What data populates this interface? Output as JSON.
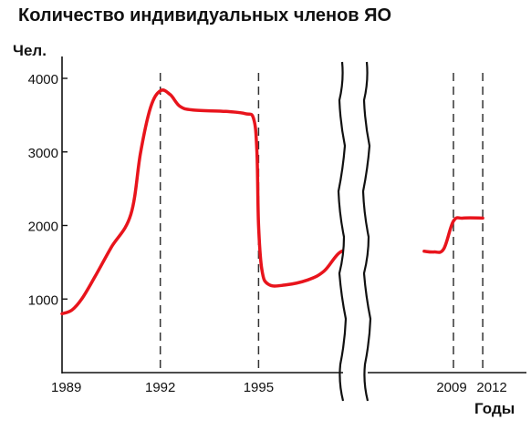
{
  "chart_data": {
    "type": "line",
    "title": "Количество индивидуальных членов ЯО",
    "ylabel": "Чел.",
    "xlabel": "Годы",
    "x_ticks": [
      "1989",
      "1992",
      "1995",
      "2009",
      "2012"
    ],
    "y_ticks": [
      "1000",
      "2000",
      "3000",
      "4000"
    ],
    "ylim": [
      0,
      4000
    ],
    "axis_break": "between 1998 and 2006",
    "vertical_markers": [
      "1992",
      "1995",
      "2009",
      "2012"
    ],
    "series": [
      {
        "color": "#e8141c",
        "points": [
          {
            "x": 1989.0,
            "y": 800
          },
          {
            "x": 1989.3,
            "y": 850
          },
          {
            "x": 1989.6,
            "y": 1000
          },
          {
            "x": 1990.0,
            "y": 1300
          },
          {
            "x": 1990.5,
            "y": 1700
          },
          {
            "x": 1991.1,
            "y": 2150
          },
          {
            "x": 1991.4,
            "y": 3000
          },
          {
            "x": 1991.7,
            "y": 3600
          },
          {
            "x": 1992.0,
            "y": 3830
          },
          {
            "x": 1992.3,
            "y": 3780
          },
          {
            "x": 1992.6,
            "y": 3620
          },
          {
            "x": 1993.0,
            "y": 3570
          },
          {
            "x": 1994.0,
            "y": 3550
          },
          {
            "x": 1994.6,
            "y": 3520
          },
          {
            "x": 1994.85,
            "y": 3450
          },
          {
            "x": 1994.95,
            "y": 3000
          },
          {
            "x": 1995.0,
            "y": 2000
          },
          {
            "x": 1995.1,
            "y": 1400
          },
          {
            "x": 1995.3,
            "y": 1200
          },
          {
            "x": 1995.8,
            "y": 1190
          },
          {
            "x": 1996.5,
            "y": 1260
          },
          {
            "x": 1997.0,
            "y": 1380
          },
          {
            "x": 1997.5,
            "y": 1640
          },
          {
            "x": 1998.0,
            "y": 1660
          },
          {
            "x": 2006.0,
            "y": 1650
          },
          {
            "x": 2007.0,
            "y": 1640
          },
          {
            "x": 2008.0,
            "y": 1680
          },
          {
            "x": 2009.0,
            "y": 2060
          },
          {
            "x": 2010.0,
            "y": 2100
          },
          {
            "x": 2012.0,
            "y": 2100
          }
        ]
      }
    ],
    "grid": false,
    "legend": "none"
  },
  "colors": {
    "line": "#e8141c",
    "axis": "#111111",
    "marker_lines": "#333333"
  }
}
